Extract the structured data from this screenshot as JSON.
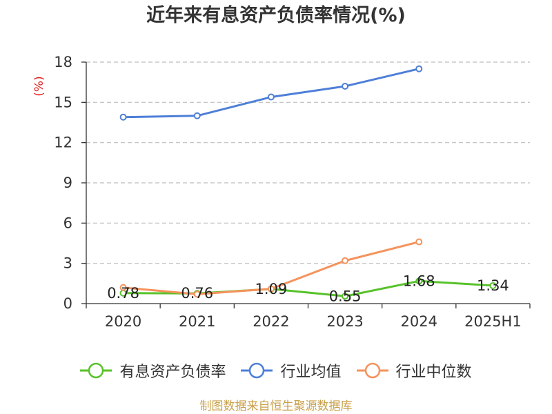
{
  "footer": {
    "source_text": "制图数据来自恒生聚源数据库",
    "color": "#c8a04a"
  },
  "chart_data": {
    "type": "line",
    "title": "近年来有息资产负债率情况(%)",
    "ylabel": "(%)",
    "ylabel_color": "#e02020",
    "categories": [
      "2020",
      "2021",
      "2022",
      "2023",
      "2024",
      "2025H1"
    ],
    "ylim": [
      0,
      18
    ],
    "yticks": [
      0,
      3,
      6,
      9,
      12,
      15,
      18
    ],
    "grid": true,
    "legend_position": "bottom",
    "series": [
      {
        "name": "有息资产负债率",
        "color": "#58c22a",
        "values": [
          0.78,
          0.76,
          1.09,
          0.55,
          1.68,
          1.34
        ],
        "data_labels": true
      },
      {
        "name": "行业均值",
        "color": "#4e7fd8",
        "values": [
          13.9,
          14.0,
          15.4,
          16.2,
          17.5,
          null
        ],
        "data_labels": false
      },
      {
        "name": "行业中位数",
        "color": "#f5925c",
        "values": [
          1.2,
          0.7,
          1.1,
          3.2,
          4.6,
          null
        ],
        "data_labels": false
      }
    ]
  }
}
